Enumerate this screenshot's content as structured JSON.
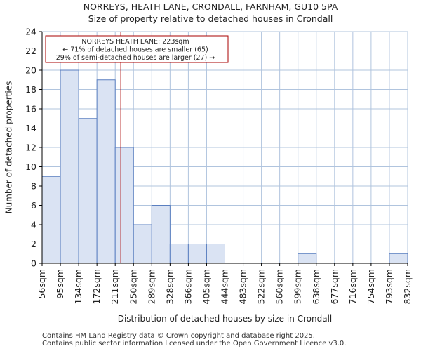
{
  "header": {
    "title": "NORREYS, HEATH LANE, CRONDALL, FARNHAM, GU10 5PA",
    "subtitle": "Size of property relative to detached houses in Crondall"
  },
  "chart_data": {
    "type": "bar",
    "title": "NORREYS, HEATH LANE, CRONDALL, FARNHAM, GU10 5PA",
    "subtitle": "Size of property relative to detached houses in Crondall",
    "xlabel": "Distribution of detached houses by size in Crondall",
    "ylabel": "Number of detached properties",
    "bin_edges": [
      56,
      95,
      134,
      172,
      211,
      250,
      289,
      328,
      366,
      405,
      444,
      483,
      522,
      560,
      599,
      638,
      677,
      716,
      754,
      793,
      832
    ],
    "tick_labels": [
      "56sqm",
      "95sqm",
      "134sqm",
      "172sqm",
      "211sqm",
      "250sqm",
      "289sqm",
      "328sqm",
      "366sqm",
      "405sqm",
      "444sqm",
      "483sqm",
      "522sqm",
      "560sqm",
      "599sqm",
      "638sqm",
      "677sqm",
      "716sqm",
      "754sqm",
      "793sqm",
      "832sqm"
    ],
    "values": [
      9,
      20,
      15,
      19,
      12,
      4,
      6,
      2,
      2,
      2,
      0,
      0,
      0,
      0,
      1,
      0,
      0,
      0,
      0,
      1
    ],
    "ylim": [
      0,
      24
    ],
    "yticks": [
      0,
      2,
      4,
      6,
      8,
      10,
      12,
      14,
      16,
      18,
      20,
      22,
      24
    ],
    "bar_color": "#dae3f3",
    "bar_edge_color": "#5a7fc0",
    "marker": {
      "value": 223,
      "color": "#aa0000",
      "annotation_lines": [
        "NORREYS HEATH LANE: 223sqm",
        "← 71% of detached houses are smaller (65)",
        "29% of semi-detached houses are larger (27) →"
      ]
    }
  },
  "footer": {
    "line1": "Contains HM Land Registry data © Crown copyright and database right 2025.",
    "line2": "Contains public sector information licensed under the Open Government Licence v3.0."
  }
}
